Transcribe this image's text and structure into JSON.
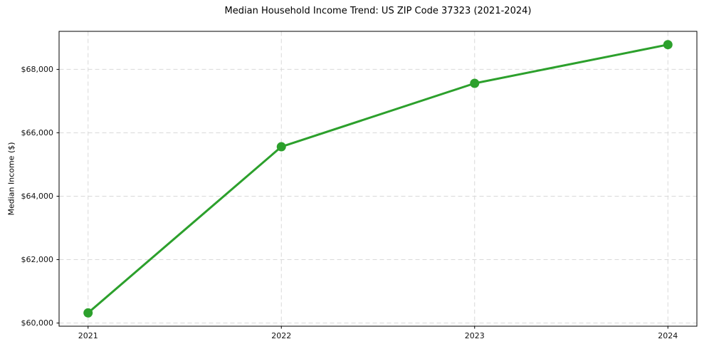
{
  "chart_data": {
    "type": "line",
    "title": "Median Household Income Trend: US ZIP Code 37323 (2021-2024)",
    "xlabel": "",
    "ylabel": "Median Income ($)",
    "x": [
      2021,
      2022,
      2023,
      2024
    ],
    "x_tick_labels": [
      "2021",
      "2022",
      "2023",
      "2024"
    ],
    "series": [
      {
        "name": "Median Household Income",
        "values": [
          60320,
          65560,
          67560,
          68780
        ]
      }
    ],
    "y_ticks": [
      60000,
      62000,
      64000,
      66000,
      68000
    ],
    "y_tick_labels": [
      "$60,000",
      "$62,000",
      "$64,000",
      "$66,000",
      "$68,000"
    ],
    "xlim": [
      2020.85,
      2024.15
    ],
    "ylim": [
      59900,
      69200
    ],
    "grid": true,
    "grid_style": "dashed",
    "legend": "none",
    "colors": {
      "line": "#2ca02c",
      "marker": "#2ca02c",
      "grid": "#d9d9d9",
      "spine": "#000000",
      "background": "#ffffff"
    }
  }
}
